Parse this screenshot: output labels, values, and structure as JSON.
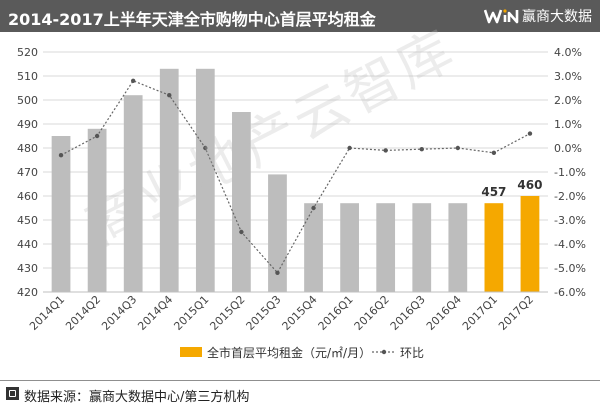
{
  "header": {
    "title": "2014-2017上半年天津全市购物中心首层平均租金",
    "brand_name": "赢商大数据"
  },
  "watermark": "商业地产云智库",
  "chart_data": {
    "type": "bar",
    "title": "2014-2017上半年天津全市购物中心首层平均租金",
    "categories": [
      "2014Q1",
      "2014Q2",
      "2014Q3",
      "2014Q4",
      "2015Q1",
      "2015Q2",
      "2015Q3",
      "2015Q4",
      "2016Q1",
      "2016Q2",
      "2016Q3",
      "2016Q4",
      "2017Q1",
      "2017Q2"
    ],
    "series": [
      {
        "name": "全市首层平均租金（元/㎡/月）",
        "type": "bar",
        "axis": "left",
        "values": [
          485,
          488,
          502,
          513,
          513,
          495,
          469,
          457,
          457,
          457,
          457,
          457,
          457,
          460
        ],
        "colors": [
          "#bdbdbd",
          "#bdbdbd",
          "#bdbdbd",
          "#bdbdbd",
          "#bdbdbd",
          "#bdbdbd",
          "#bdbdbd",
          "#bdbdbd",
          "#bdbdbd",
          "#bdbdbd",
          "#bdbdbd",
          "#bdbdbd",
          "#f5a800",
          "#f5a800"
        ]
      },
      {
        "name": "环比",
        "type": "line",
        "axis": "right",
        "values": [
          -0.3,
          0.5,
          2.8,
          2.2,
          0.0,
          -3.5,
          -5.2,
          -2.5,
          0.0,
          -0.1,
          -0.05,
          0.0,
          -0.2,
          0.6
        ]
      }
    ],
    "data_labels": [
      {
        "category": "2017Q1",
        "text": "457"
      },
      {
        "category": "2017Q2",
        "text": "460"
      }
    ],
    "ylim": [
      420,
      520
    ],
    "y_ticks": [
      "420",
      "430",
      "440",
      "450",
      "460",
      "470",
      "480",
      "490",
      "500",
      "510",
      "520"
    ],
    "y2lim": [
      -6.0,
      4.0
    ],
    "y2_ticks": [
      "-6.0%",
      "-5.0%",
      "-4.0%",
      "-3.0%",
      "-2.0%",
      "-1.0%",
      "0.0%",
      "1.0%",
      "2.0%",
      "3.0%",
      "4.0%"
    ],
    "grid": true,
    "legend_position": "bottom",
    "colors": {
      "bar": "#bdbdbd",
      "highlight": "#f5a800",
      "line": "#666666",
      "grid": "#d9d9d9"
    }
  },
  "footer": {
    "source": "数据来源：赢商大数据中心/第三方机构"
  }
}
